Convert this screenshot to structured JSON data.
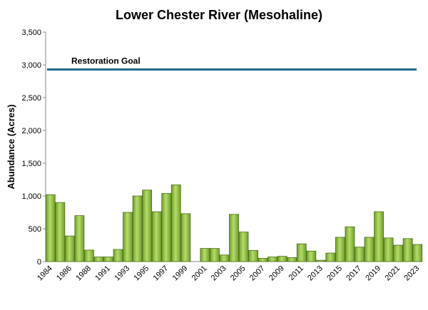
{
  "chart_data": {
    "type": "bar",
    "title": "Lower Chester River (Mesohaline)",
    "ylabel": "Abundance (Acres)",
    "categories": [
      "1984",
      null,
      "1986",
      null,
      "1988",
      null,
      "1991",
      null,
      "1993",
      null,
      "1995",
      null,
      "1997",
      null,
      "1999",
      null,
      "2001",
      null,
      "2003",
      null,
      "2005",
      null,
      "2007",
      null,
      "2009",
      null,
      "2011",
      null,
      "2013",
      null,
      "2015",
      null,
      "2017",
      null,
      "2019",
      null,
      "2021",
      null,
      "2023"
    ],
    "values": [
      1020,
      900,
      390,
      700,
      175,
      70,
      70,
      185,
      750,
      1000,
      1090,
      760,
      1040,
      1170,
      730,
      null,
      200,
      200,
      100,
      720,
      450,
      170,
      50,
      70,
      80,
      60,
      270,
      160,
      20,
      130,
      370,
      530,
      220,
      370,
      760,
      360,
      250,
      350,
      260
    ],
    "color": "#8dc63f",
    "ylim": [
      0,
      3500
    ],
    "yticks": [
      0,
      500,
      {
        "value": 1000,
        "label": "1,000"
      },
      {
        "value": 1500,
        "label": "1,500"
      },
      {
        "value": 2000,
        "label": "2,000"
      },
      {
        "value": 2500,
        "label": "2,500"
      },
      {
        "value": 3000,
        "label": "3,000"
      },
      {
        "value": 3500,
        "label": "3,500"
      }
    ],
    "goal": {
      "label": "Restoration Goal",
      "value": 2930,
      "color": "#1f6b87"
    }
  }
}
